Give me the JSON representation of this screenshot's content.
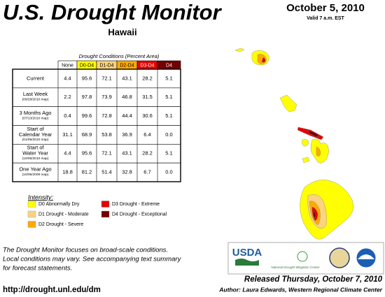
{
  "header": {
    "title": "U.S. Drought Monitor",
    "region": "Hawaii",
    "date": "October 5, 2010",
    "valid": "Valid 7 a.m. EST"
  },
  "table": {
    "caption": "Drought Conditions (Percent Area)",
    "columns": [
      {
        "label": "None",
        "color": "#ffffff",
        "text_color": "#000000"
      },
      {
        "label": "D0-D4",
        "color": "#ffff00",
        "text_color": "#000000"
      },
      {
        "label": "D1-D4",
        "color": "#fcd37f",
        "text_color": "#000000"
      },
      {
        "label": "D2-D4",
        "color": "#ffaa00",
        "text_color": "#000000"
      },
      {
        "label": "D3-D4",
        "color": "#e60000",
        "text_color": "#ffffff"
      },
      {
        "label": "D4",
        "color": "#730000",
        "text_color": "#ffffff"
      }
    ],
    "rows": [
      {
        "label": [
          "Current"
        ],
        "values": [
          "4.4",
          "95.6",
          "72.1",
          "43.1",
          "28.2",
          "5.1"
        ]
      },
      {
        "label": [
          "Last Week"
        ],
        "date": "(09/28/2010 map)",
        "values": [
          "2.2",
          "97.8",
          "73.9",
          "46.8",
          "31.5",
          "5.1"
        ]
      },
      {
        "label": [
          "3 Months Ago"
        ],
        "date": "(07/13/2010 map)",
        "values": [
          "0.4",
          "99.6",
          "72.8",
          "44.4",
          "30.6",
          "5.1"
        ]
      },
      {
        "label": [
          "Start of",
          "Calendar Year"
        ],
        "date": "(01/05/2010 map)",
        "values": [
          "31.1",
          "68.9",
          "53.8",
          "36.9",
          "6.4",
          "0.0"
        ]
      },
      {
        "label": [
          "Start of",
          "Water Year"
        ],
        "date": "(10/05/2010 map)",
        "values": [
          "4.4",
          "95.6",
          "72.1",
          "43.1",
          "28.2",
          "5.1"
        ]
      },
      {
        "label": [
          "One Year Ago"
        ],
        "date": "(10/06/2009 map)",
        "values": [
          "18.8",
          "81.2",
          "51.4",
          "32.8",
          "6.7",
          "0.0"
        ]
      }
    ]
  },
  "legend": {
    "title": "Intensity:",
    "items": [
      {
        "label": "D0 Abnormally Dry",
        "color": "#ffff00"
      },
      {
        "label": "D1 Drought - Moderate",
        "color": "#fcd37f"
      },
      {
        "label": "D2 Drought - Severe",
        "color": "#ffaa00"
      },
      {
        "label": "D3 Drought - Extreme",
        "color": "#e60000"
      },
      {
        "label": "D4 Drought - Exceptional",
        "color": "#730000"
      }
    ]
  },
  "footer": {
    "note": [
      "The Drought Monitor focuses on broad-scale conditions.",
      "Local conditions may vary. See accompanying text summary",
      "for forecast statements."
    ],
    "url": "http://drought.unl.edu/dm",
    "released": "Released Thursday, October 7, 2010",
    "author": "Author: Laura Edwards, Western Regional Climate Center",
    "logos": {
      "usda": "USDA",
      "ndmc": "National Drought Mitigation Center"
    }
  }
}
